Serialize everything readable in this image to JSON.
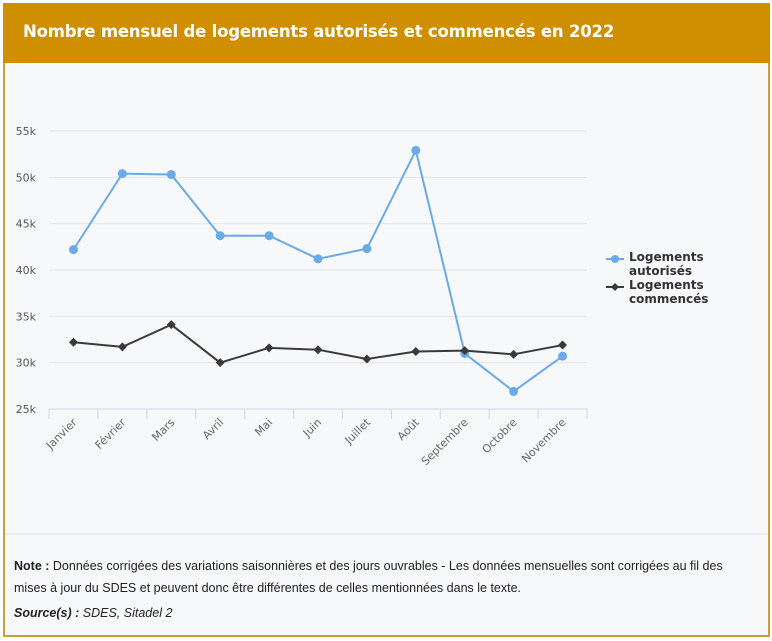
{
  "header": {
    "title": "Nombre mensuel de logements autorisés et commencés en 2022"
  },
  "colors": {
    "header_bg": "#d08f00",
    "series_autorises": "#6aaae8",
    "series_commences": "#3a3a3a"
  },
  "chart_data": {
    "type": "line",
    "title": "Nombre mensuel de logements autorisés et commencés en 2022",
    "xlabel": "",
    "ylabel": "",
    "categories": [
      "Janvier",
      "Février",
      "Mars",
      "Avril",
      "Mai",
      "Juin",
      "Juillet",
      "Août",
      "Septembre",
      "Octobre",
      "Novembre"
    ],
    "series": [
      {
        "name": "Logements autorisés",
        "marker": "circle",
        "values": [
          42200,
          50400,
          50300,
          43700,
          43700,
          41200,
          42300,
          52900,
          31000,
          26900,
          30700
        ]
      },
      {
        "name": "Logements commencés",
        "marker": "diamond",
        "values": [
          32200,
          31700,
          34100,
          30000,
          31600,
          31400,
          30400,
          31200,
          31300,
          30900,
          31900
        ]
      }
    ],
    "ylim": [
      25000,
      55000
    ],
    "yticks": [
      25000,
      30000,
      35000,
      40000,
      45000,
      50000,
      55000
    ],
    "ytick_labels": [
      "25k",
      "30k",
      "35k",
      "40k",
      "45k",
      "50k",
      "55k"
    ],
    "grid": true,
    "legend": "right"
  },
  "legend": {
    "items": [
      {
        "label_line1": "Logements",
        "label_line2": "autorisés"
      },
      {
        "label_line1": "Logements",
        "label_line2": "commencés"
      }
    ]
  },
  "notes": {
    "note_label": "Note :",
    "note_text": " Données corrigées des variations saisonnières et des jours ouvrables - Les données mensuelles sont corrigées au fil des mises à jour du SDES et peuvent donc être différentes de celles mentionnées dans le texte.",
    "source_label": "Source(s) :",
    "source_text": " SDES, Sitadel 2"
  }
}
